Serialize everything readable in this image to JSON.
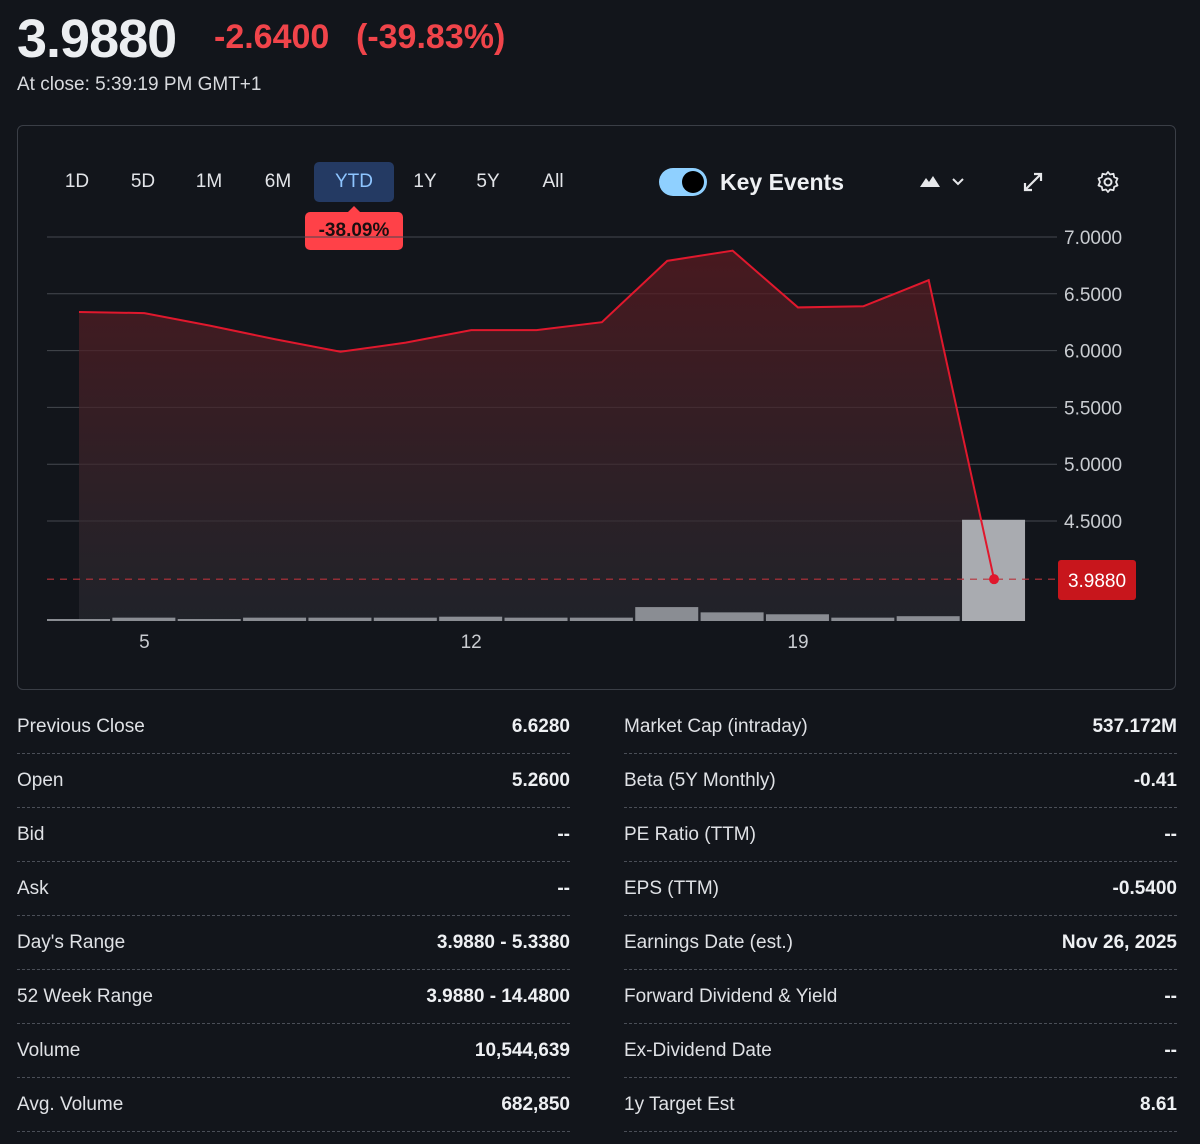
{
  "quote": {
    "price": "3.9880",
    "change": "-2.6400",
    "change_pct": "(-39.83%)",
    "close_time": "At close: 5:39:19 PM GMT+1"
  },
  "ranges": [
    {
      "label": "1D"
    },
    {
      "label": "5D"
    },
    {
      "label": "1M"
    },
    {
      "label": "6M"
    },
    {
      "label": "YTD",
      "active": true
    },
    {
      "label": "1Y"
    },
    {
      "label": "5Y"
    },
    {
      "label": "All"
    }
  ],
  "range_tooltip": "-38.09%",
  "key_events": {
    "label": "Key Events",
    "enabled": true
  },
  "icons": {
    "chart_type": "mountain-chart-icon",
    "dropdown": "chevron-down-icon",
    "expand": "expand-icon",
    "settings": "gear-icon"
  },
  "colors": {
    "accent_red": "#f0444a",
    "line": "#e0182d",
    "active_tab": "#243a63",
    "toggle": "#8fd0ff"
  },
  "chart_data": {
    "type": "line",
    "y_ticks": [
      "7.0000",
      "6.5000",
      "6.0000",
      "5.5000",
      "5.0000",
      "4.5000"
    ],
    "ylim": [
      3.1,
      7.0
    ],
    "x_ticks": [
      {
        "index": 1,
        "label": "5"
      },
      {
        "index": 6,
        "label": "12"
      },
      {
        "index": 11,
        "label": "19"
      }
    ],
    "price": [
      6.34,
      6.33,
      6.22,
      6.1,
      5.99,
      6.07,
      6.18,
      6.18,
      6.25,
      6.79,
      6.88,
      6.38,
      6.39,
      6.62,
      3.988
    ],
    "volume_millions": [
      0.2,
      0.35,
      0.2,
      0.35,
      0.35,
      0.35,
      0.45,
      0.35,
      0.35,
      1.45,
      0.9,
      0.7,
      0.35,
      0.5,
      10.544639
    ],
    "last_price_label": "3.9880",
    "last_price": 3.988
  },
  "stats_left": [
    {
      "label": "Previous Close",
      "value": "6.6280"
    },
    {
      "label": "Open",
      "value": "5.2600"
    },
    {
      "label": "Bid",
      "value": "--"
    },
    {
      "label": "Ask",
      "value": "--"
    },
    {
      "label": "Day's Range",
      "value": "3.9880 - 5.3380"
    },
    {
      "label": "52 Week Range",
      "value": "3.9880 - 14.4800"
    },
    {
      "label": "Volume",
      "value": "10,544,639"
    },
    {
      "label": "Avg. Volume",
      "value": "682,850"
    }
  ],
  "stats_right": [
    {
      "label": "Market Cap (intraday)",
      "value": "537.172M"
    },
    {
      "label": "Beta (5Y Monthly)",
      "value": "-0.41"
    },
    {
      "label": "PE Ratio (TTM)",
      "value": "--"
    },
    {
      "label": "EPS (TTM)",
      "value": "-0.5400"
    },
    {
      "label": "Earnings Date (est.)",
      "value": "Nov 26, 2025"
    },
    {
      "label": "Forward Dividend & Yield",
      "value": "--"
    },
    {
      "label": "Ex-Dividend Date",
      "value": "--"
    },
    {
      "label": "1y Target Est",
      "value": "8.61"
    }
  ]
}
